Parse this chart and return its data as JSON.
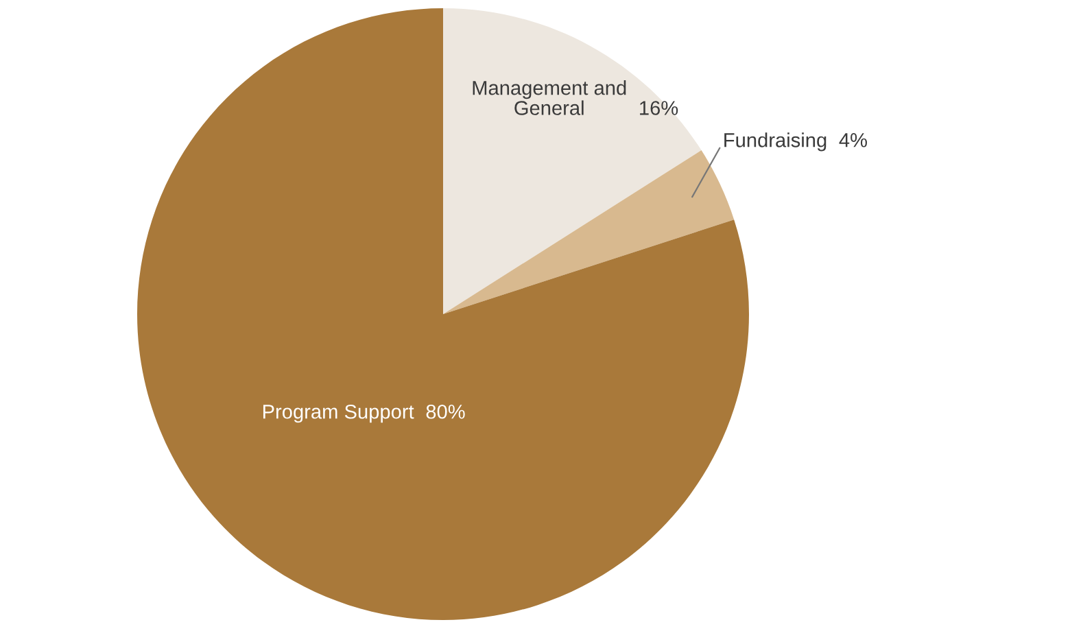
{
  "chart_data": {
    "type": "pie",
    "categories": [
      "Management and General",
      "Fundraising",
      "Program Support"
    ],
    "values": [
      16,
      4,
      80
    ],
    "colors": [
      "#ede7df",
      "#d8b98f",
      "#a9793a"
    ],
    "value_labels": [
      "16%",
      "4%",
      "80%"
    ]
  }
}
